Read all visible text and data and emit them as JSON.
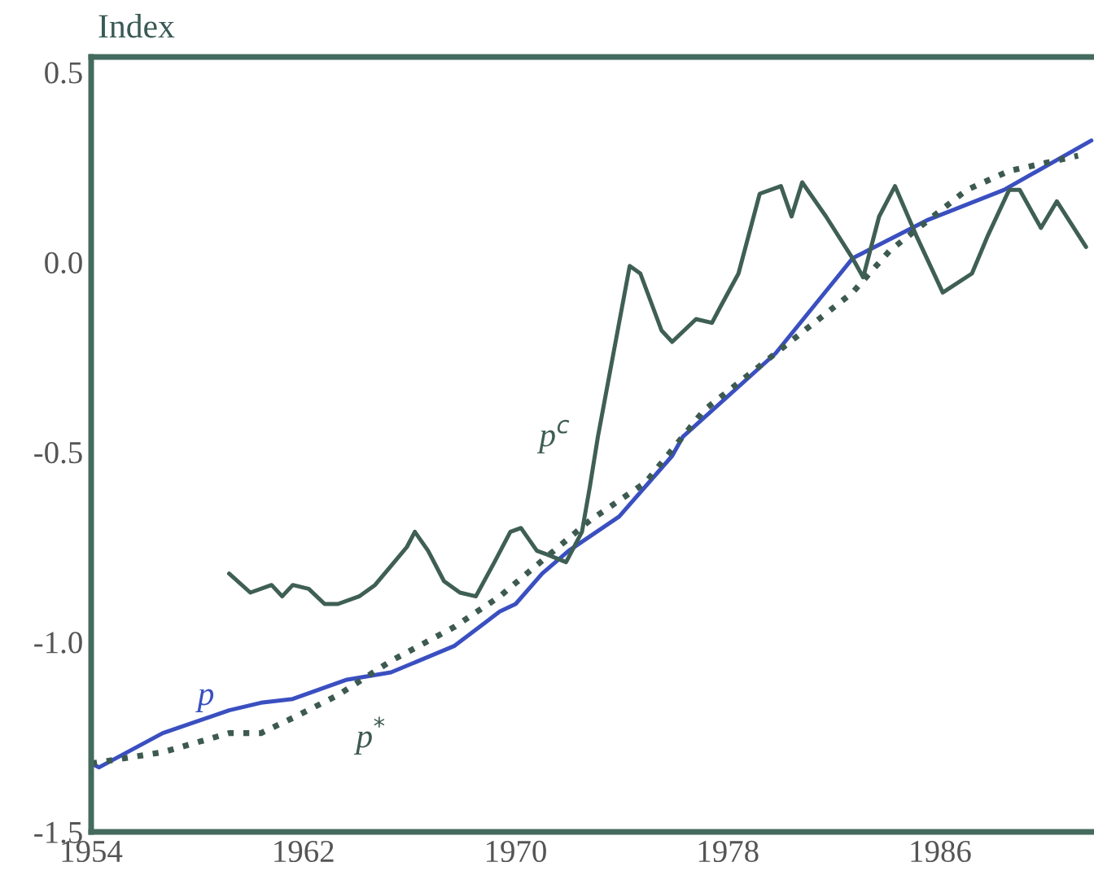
{
  "chart_data": {
    "type": "line",
    "ylabel": "Index",
    "xlim": [
      1954,
      1991.8
    ],
    "xticks": [
      1954,
      1962,
      1970,
      1978,
      1986
    ],
    "ylim": [
      -1.5,
      0.54
    ],
    "yticks": [
      {
        "value": 0.5,
        "label": "0.5"
      },
      {
        "value": 0.0,
        "label": "0.0"
      },
      {
        "value": -0.5,
        "label": "-0.5"
      },
      {
        "value": -1.0,
        "label": "-1.0"
      },
      {
        "value": -1.5,
        "label": "-1.5"
      }
    ],
    "grid": false,
    "legend": false,
    "marker": "none",
    "series": [
      {
        "name": "p",
        "color": "#3a4fc0",
        "line_style": "solid",
        "x": [
          1954.0,
          1954.3,
          1956.7,
          1959.2,
          1960.4,
          1961.6,
          1963.6,
          1965.3,
          1967.7,
          1969.4,
          1970.0,
          1971.0,
          1972.0,
          1973.9,
          1975.9,
          1976.3,
          1979.8,
          1982.7,
          1985.5,
          1988.4,
          1991.7
        ],
        "values": [
          -1.32,
          -1.33,
          -1.24,
          -1.18,
          -1.16,
          -1.15,
          -1.1,
          -1.08,
          -1.01,
          -0.92,
          -0.9,
          -0.82,
          -0.76,
          -0.67,
          -0.51,
          -0.46,
          -0.24,
          0.01,
          0.11,
          0.19,
          0.32
        ]
      },
      {
        "name": "p$^{*}$",
        "color": "#3d5a50",
        "line_style": "dotted",
        "x": [
          1954.0,
          1956.7,
          1959.2,
          1960.4,
          1961.6,
          1963.3,
          1965.3,
          1967.7,
          1969.4,
          1972.8,
          1974.9,
          1977.1,
          1979.8,
          1982.7,
          1984.1,
          1987.0,
          1988.6,
          1991.2
        ],
        "values": [
          -1.32,
          -1.29,
          -1.24,
          -1.24,
          -1.2,
          -1.14,
          -1.05,
          -0.96,
          -0.88,
          -0.68,
          -0.58,
          -0.39,
          -0.24,
          -0.08,
          0.03,
          0.19,
          0.24,
          0.28
        ]
      },
      {
        "name": "p$^{c}$",
        "color": "#3f5f55",
        "line_style": "solid",
        "x": [
          1959.2,
          1960.0,
          1960.8,
          1961.2,
          1961.6,
          1962.2,
          1962.8,
          1963.3,
          1964.1,
          1964.7,
          1965.3,
          1965.9,
          1966.2,
          1966.7,
          1967.3,
          1967.9,
          1968.5,
          1969.2,
          1969.8,
          1970.2,
          1970.8,
          1971.2,
          1971.9,
          1972.5,
          1972.8,
          1973.1,
          1973.9,
          1974.3,
          1974.7,
          1975.5,
          1975.9,
          1976.8,
          1977.4,
          1977.7,
          1978.4,
          1979.2,
          1980.0,
          1980.4,
          1980.8,
          1981.7,
          1982.7,
          1983.1,
          1983.7,
          1984.3,
          1985.1,
          1986.1,
          1987.2,
          1987.8,
          1988.6,
          1989.0,
          1989.8,
          1990.4,
          1991.5
        ],
        "values": [
          -0.82,
          -0.87,
          -0.85,
          -0.88,
          -0.85,
          -0.86,
          -0.9,
          -0.9,
          -0.88,
          -0.85,
          -0.8,
          -0.75,
          -0.71,
          -0.76,
          -0.84,
          -0.87,
          -0.88,
          -0.79,
          -0.71,
          -0.7,
          -0.76,
          -0.77,
          -0.79,
          -0.71,
          -0.59,
          -0.46,
          -0.16,
          -0.01,
          -0.03,
          -0.18,
          -0.21,
          -0.15,
          -0.16,
          -0.12,
          -0.03,
          0.18,
          0.2,
          0.12,
          0.21,
          0.12,
          0.01,
          -0.04,
          0.12,
          0.2,
          0.07,
          -0.08,
          -0.03,
          0.07,
          0.19,
          0.19,
          0.09,
          0.16,
          0.04
        ]
      }
    ]
  }
}
